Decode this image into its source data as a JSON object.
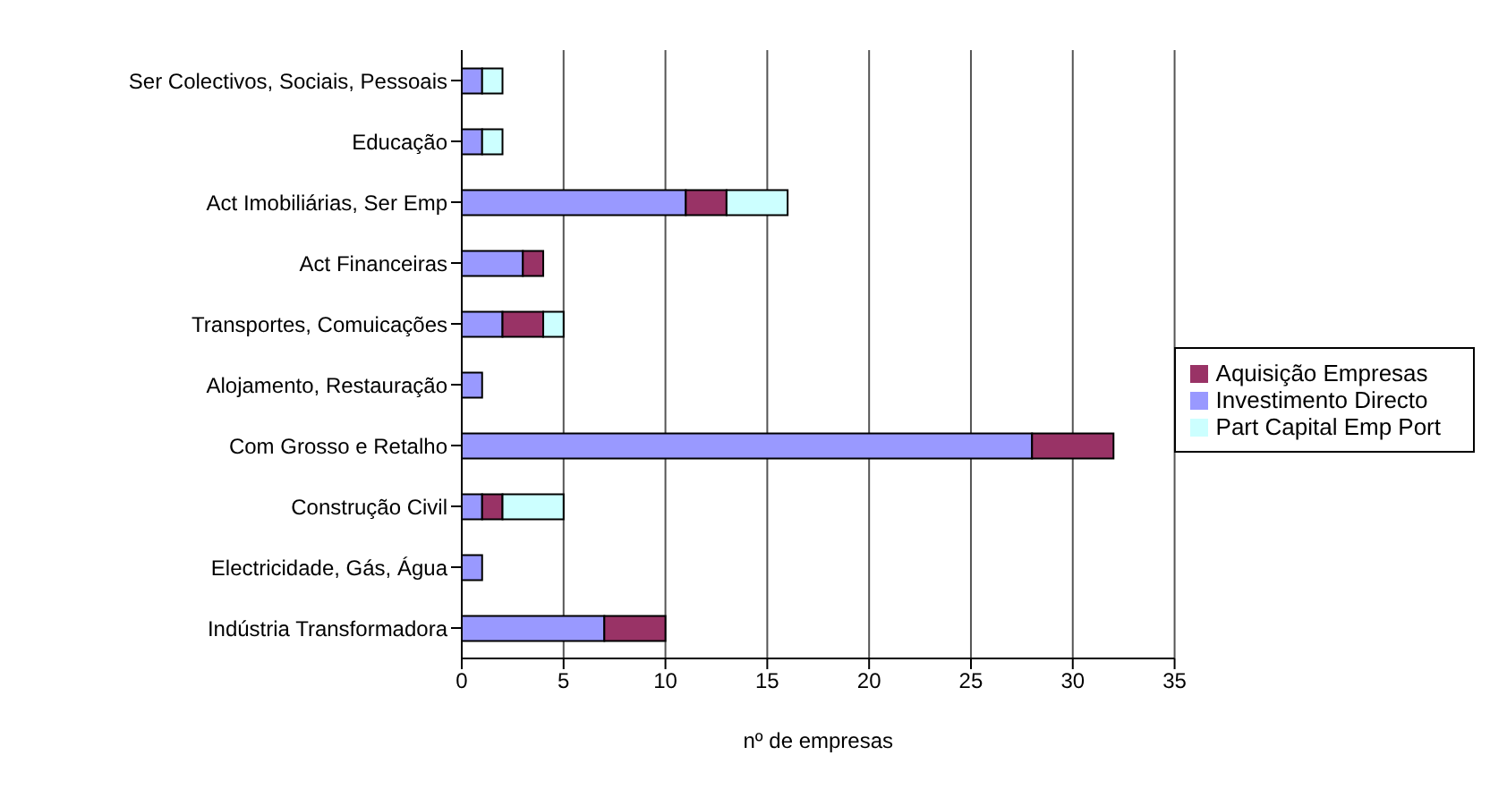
{
  "chart_data": {
    "type": "bar",
    "orientation": "horizontal",
    "stacked": true,
    "xlabel": "nº de empresas",
    "categories": [
      "Ser Colectivos, Sociais, Pessoais",
      "Educação",
      "Act Imobiliárias, Ser Emp",
      "Act Financeiras",
      "Transportes, Comuicações",
      "Alojamento, Restauração",
      "Com Grosso e Retalho",
      "Construção Civil",
      "Electricidade, Gás, Água",
      "Indústria Transformadora"
    ],
    "series": [
      {
        "name": "Investimento Directo",
        "color": "#9999ff",
        "values": [
          1,
          1,
          11,
          3,
          2,
          1,
          28,
          1,
          1,
          7
        ]
      },
      {
        "name": "Aquisição Empresas",
        "color": "#993366",
        "values": [
          0,
          0,
          2,
          1,
          2,
          0,
          4,
          1,
          0,
          3
        ]
      },
      {
        "name": "Part Capital Emp Port",
        "color": "#ccffff",
        "values": [
          1,
          1,
          3,
          0,
          1,
          0,
          0,
          3,
          0,
          0
        ]
      }
    ],
    "xlim": [
      0,
      35
    ],
    "xticks": [
      0,
      5,
      10,
      15,
      20,
      25,
      30,
      35
    ],
    "grid": "x",
    "legend": "right"
  }
}
